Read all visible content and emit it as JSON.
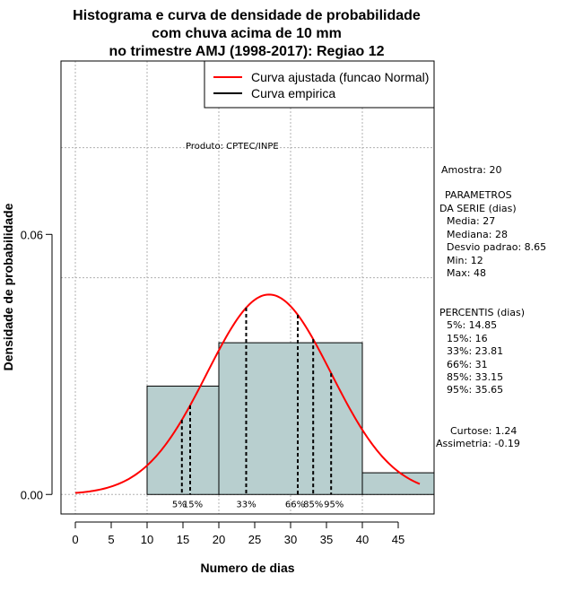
{
  "chart_data": {
    "type": "histogram",
    "title": [
      "Histograma e curva de densidade de probabilidade",
      "com chuva acima de 10 mm",
      "no trimestre AMJ (1998-2017): Regiao 12"
    ],
    "xlabel": "Numero de dias",
    "ylabel": "Densidade de probabilidade",
    "xlim": [
      -2,
      50
    ],
    "ylim": [
      -0.0045,
      0.1
    ],
    "x_ticks": [
      "0",
      "5",
      "10",
      "15",
      "20",
      "25",
      "30",
      "35",
      "40",
      "45"
    ],
    "y_ticks": [
      "0.00",
      "0.06"
    ],
    "bins": [
      {
        "start": 10,
        "end": 20,
        "density": 0.025
      },
      {
        "start": 20,
        "end": 40,
        "density": 0.035
      },
      {
        "start": 40,
        "end": 50,
        "density": 0.005
      }
    ],
    "normal_curve": {
      "mean": 27,
      "sd": 8.65,
      "x_range": [
        0,
        48
      ]
    },
    "percentiles": [
      {
        "label": "5%",
        "x": 14.85
      },
      {
        "label": "15%",
        "x": 16
      },
      {
        "label": "33%",
        "x": 23.81
      },
      {
        "label": "66%",
        "x": 31
      },
      {
        "label": "85%",
        "x": 33.15
      },
      {
        "label": "95%",
        "x": 35.65
      }
    ],
    "legend": [
      {
        "label": "Curva ajustada (funcao Normal)",
        "color": "#ff0000"
      },
      {
        "label": "Curva empirica",
        "color": "#000000"
      }
    ],
    "colors": {
      "bar_fill": "#b8cfcf",
      "curve": "#ff0000",
      "grid": "#b0b0b0"
    },
    "grid": true
  },
  "product_note": "Produto: CPTEC/INPE",
  "stats": {
    "sample": "Amostra: 20",
    "params_header": [
      "PARAMETROS",
      "DA SERIE (dias)"
    ],
    "params": [
      "Media: 27",
      "Mediana: 28",
      "Desvio padrao: 8.65",
      "Min: 12",
      "Max: 48"
    ],
    "percentis_header": "PERCENTIS (dias)",
    "percentis": [
      "5%: 14.85",
      "15%: 16",
      "33%: 23.81",
      "66%: 31",
      "85%: 33.15",
      "95%: 35.65"
    ],
    "curtose": "Curtose: 1.24",
    "assimetria": "Assimetria: -0.19"
  }
}
